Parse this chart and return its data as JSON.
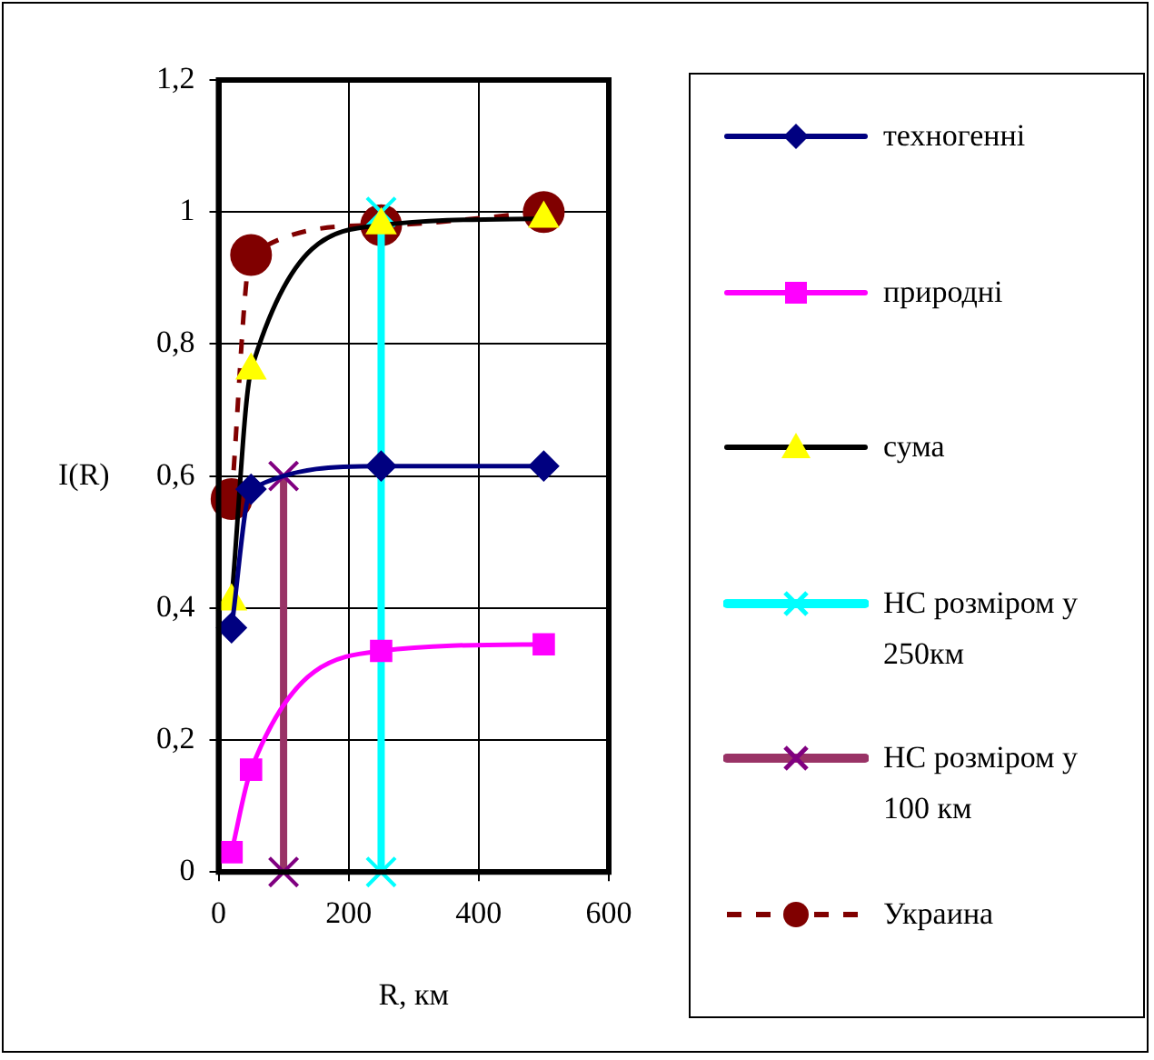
{
  "chart_data": {
    "type": "line",
    "xlabel": "R, км",
    "ylabel": "I(R)",
    "xlim": [
      0,
      600
    ],
    "xticks": [
      0,
      200,
      400,
      600
    ],
    "ylim": [
      0,
      1.2
    ],
    "yticks": [
      0,
      {
        "value": 0.2,
        "label": "0,2"
      },
      {
        "value": 0.4,
        "label": "0,4"
      },
      {
        "value": 0.6,
        "label": "0,6"
      },
      {
        "value": 0.8,
        "label": "0,8"
      },
      1,
      {
        "value": 1.2,
        "label": "1,2"
      }
    ],
    "grid": true,
    "legend": "right",
    "series": [
      {
        "name": "техногенні",
        "color": "#000080",
        "marker": "diamond",
        "line_style": "solid",
        "x": [
          20,
          50,
          250,
          500
        ],
        "values": [
          0.37,
          0.58,
          0.615,
          0.615
        ]
      },
      {
        "name": "природні",
        "color": "#ff00ff",
        "marker": "square",
        "line_style": "solid",
        "x": [
          20,
          50,
          250,
          500
        ],
        "values": [
          0.03,
          0.155,
          0.335,
          0.345
        ]
      },
      {
        "name": "сума",
        "color": "#000000",
        "colors": [
          "#ffff00",
          "#ffff00",
          "#ffff00",
          "#ffff00"
        ],
        "marker": "triangle",
        "line_style": "solid",
        "x": [
          20,
          50,
          250,
          500
        ],
        "values": [
          0.41,
          0.76,
          0.98,
          0.99
        ]
      },
      {
        "name": "НС розміром у 250км",
        "color": "#00ffff",
        "marker": "cross",
        "line_style": "solid",
        "x": [
          250,
          250
        ],
        "values": [
          0,
          1
        ]
      },
      {
        "name": "НС розміром у 100 км",
        "color": "#993366",
        "colors": [
          "#800080",
          "#800080"
        ],
        "marker": "cross",
        "line_style": "solid",
        "x": [
          100,
          100
        ],
        "values": [
          0,
          0.6
        ]
      },
      {
        "name": "Украина",
        "color": "#800000",
        "marker": "circle",
        "line_style": "dashed",
        "x": [
          20,
          50,
          250,
          500
        ],
        "values": [
          0.565,
          0.935,
          0.98,
          1
        ]
      }
    ]
  }
}
